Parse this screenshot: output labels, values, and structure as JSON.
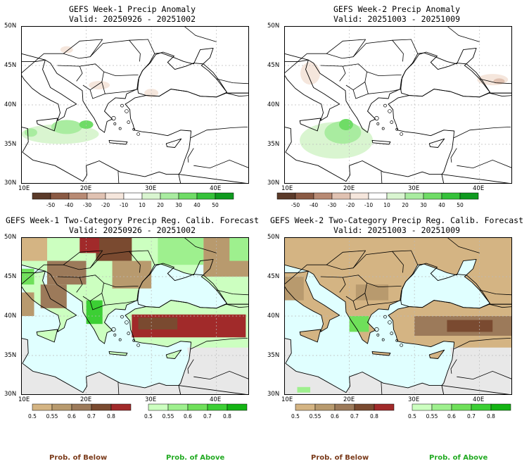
{
  "panels": [
    {
      "title": "GEFS Week-1 Precip Anomaly",
      "valid": "Valid: 20250926 - 20251002"
    },
    {
      "title": "GEFS Week-2 Precip Anomaly",
      "valid": "Valid: 20251003 - 20251009"
    },
    {
      "title": "GEFS Week-1 Two-Category Precip Reg. Calib. Forecast",
      "valid": "Valid: 20250926 - 20251002"
    },
    {
      "title": "GEFS Week-2 Two-Category Precip Reg. Calib. Forecast",
      "valid": "Valid: 20251003 - 20251009"
    }
  ],
  "axes": {
    "lat_labels": [
      "50N",
      "45N",
      "40N",
      "35N",
      "30N"
    ],
    "lon_labels": [
      "10E",
      "20E",
      "30E",
      "40E"
    ]
  },
  "anomaly_colorbar": {
    "labels": [
      "-50",
      "-40",
      "-30",
      "-20",
      "-10",
      "10",
      "20",
      "30",
      "40",
      "50"
    ],
    "colors": [
      "#5b3a29",
      "#8a5a44",
      "#b88a74",
      "#e0c2b2",
      "#f5e6dc",
      "#ffffff",
      "#d9f5d0",
      "#a9eca0",
      "#6fdc66",
      "#35c23a",
      "#0f9a1f"
    ]
  },
  "below_colorbar": {
    "labels": [
      "0.5",
      "0.55",
      "0.6",
      "0.7",
      "0.8"
    ],
    "colors": [
      "#d4b483",
      "#b89a6e",
      "#9c7a5a",
      "#7a4a30",
      "#a12a2a"
    ],
    "caption": "Prob. of Below"
  },
  "above_colorbar": {
    "labels": [
      "0.5",
      "0.55",
      "0.6",
      "0.7",
      "0.8"
    ],
    "colors": [
      "#ccffc0",
      "#9ef08e",
      "#6fe05a",
      "#3ccf34",
      "#14b414"
    ],
    "caption": "Prob. of Above"
  },
  "colors": {
    "sea": "#e0ffff",
    "land_gray": "#e8e8e8",
    "below_caption": "#7a3a1a",
    "above_caption": "#22aa22"
  }
}
